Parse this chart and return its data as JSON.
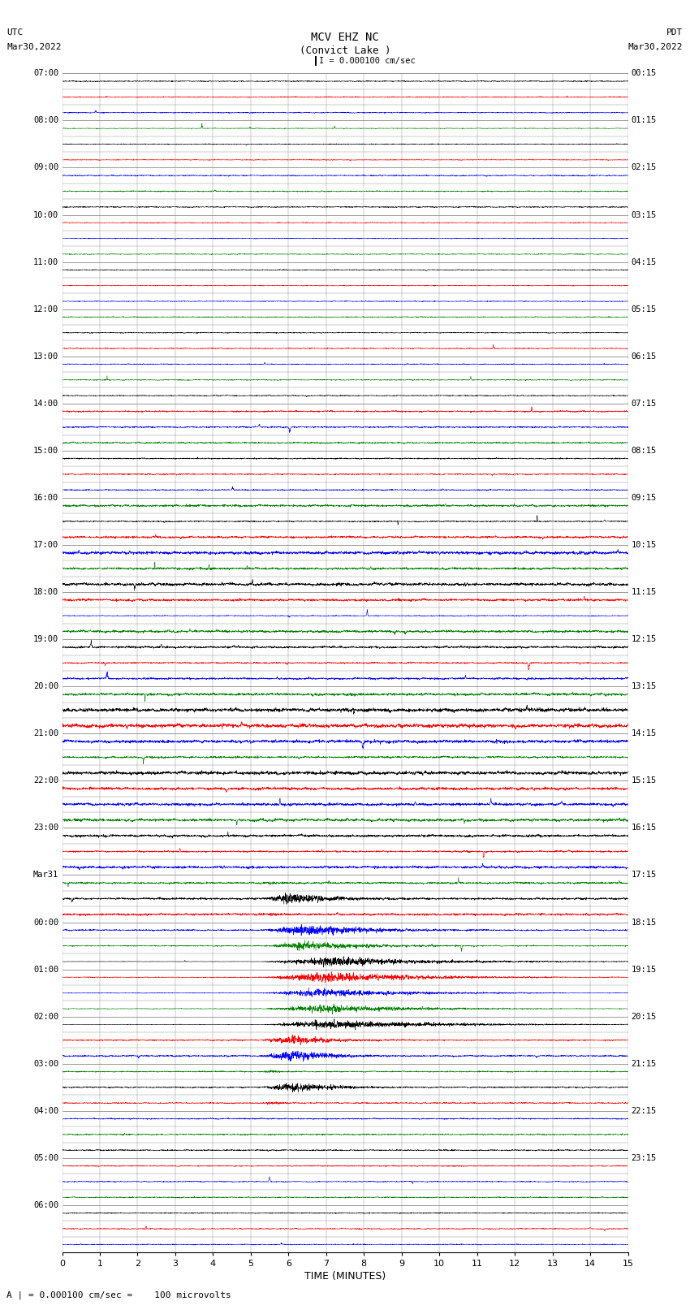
{
  "title_line1": "MCV EHZ NC",
  "title_line2": "(Convict Lake )",
  "scale_bar_label": "I = 0.000100 cm/sec",
  "left_header1": "UTC",
  "left_header2": "Mar30,2022",
  "right_header1": "PDT",
  "right_header2": "Mar30,2022",
  "xlabel": "TIME (MINUTES)",
  "footer": "A | = 0.000100 cm/sec =    100 microvolts",
  "bg_color": "#ffffff",
  "trace_colors": [
    "blue",
    "red",
    "blue",
    "green",
    "black"
  ],
  "grid_color": "#888888",
  "utc_labels": [
    "07:00",
    "08:00",
    "09:00",
    "10:00",
    "11:00",
    "12:00",
    "13:00",
    "14:00",
    "15:00",
    "16:00",
    "17:00",
    "18:00",
    "19:00",
    "20:00",
    "21:00",
    "22:00",
    "23:00",
    "Mar31",
    "00:00",
    "01:00",
    "02:00",
    "03:00",
    "04:00",
    "05:00",
    "06:00"
  ],
  "pdt_labels": [
    "00:15",
    "01:15",
    "02:15",
    "03:15",
    "04:15",
    "05:15",
    "06:15",
    "07:15",
    "08:15",
    "09:15",
    "10:15",
    "11:15",
    "12:15",
    "13:15",
    "14:15",
    "15:15",
    "16:15",
    "17:15",
    "18:15",
    "19:15",
    "20:15",
    "21:15",
    "22:15",
    "23:15",
    ""
  ],
  "rows_per_hour": 3,
  "num_hours": 24,
  "xmin": 0,
  "xmax": 15,
  "figsize": [
    8.5,
    16.13
  ],
  "dpi": 100
}
